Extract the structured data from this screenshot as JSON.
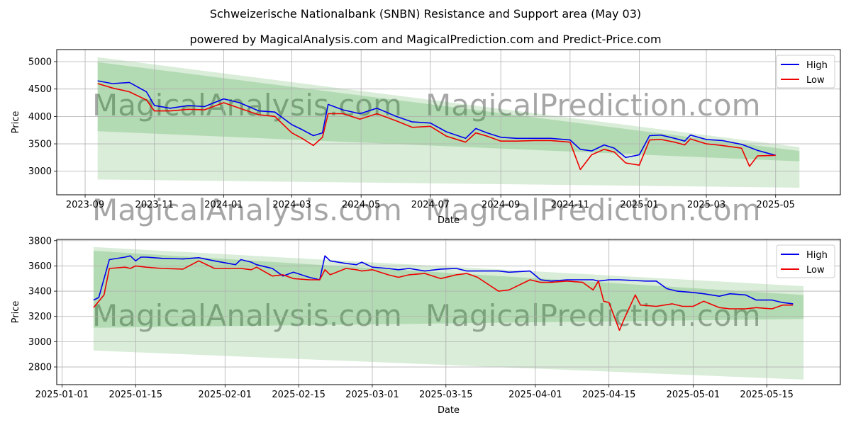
{
  "header": {
    "title": "Schweizerische Nationalbank (SNBN) Resistance and Support area (May 03)",
    "subtitle": "powered by MagicalAnalysis.com and MagicalPrediction.com and Predict-Price.com"
  },
  "watermarks": [
    "MagicalAnalysis.com",
    "MagicalPrediction.com"
  ],
  "colors": {
    "high": "#0000ee",
    "low": "#ee0000",
    "band": "#2e9b2e",
    "grid": "#b0b0b0"
  },
  "chart_data": [
    {
      "type": "line",
      "xlabel": "Date",
      "ylabel": "Price",
      "grid": true,
      "legend_position": "top-right",
      "x_ticks": [
        "2023-09",
        "2023-11",
        "2024-01",
        "2024-03",
        "2024-05",
        "2024-07",
        "2024-09",
        "2024-11",
        "2025-01",
        "2025-03",
        "2025-05"
      ],
      "y_ticks": [
        3000,
        3500,
        4000,
        4500,
        5000
      ],
      "xlim": [
        "2023-08-07",
        "2025-06-27"
      ],
      "ylim": [
        2570,
        5220
      ],
      "bands": [
        {
          "x": [
            "2023-09-12",
            "2025-05-22"
          ],
          "upper": [
            5080,
            3440
          ],
          "lower": [
            2850,
            2700
          ],
          "opacity": 0.18
        },
        {
          "x": [
            "2023-09-12",
            "2025-05-22"
          ],
          "upper": [
            4990,
            3370
          ],
          "lower": [
            3730,
            3180
          ],
          "opacity": 0.22
        }
      ],
      "series": [
        {
          "name": "High",
          "points": [
            [
              "2023-09-12",
              4650
            ],
            [
              "2023-09-25",
              4600
            ],
            [
              "2023-10-10",
              4620
            ],
            [
              "2023-10-25",
              4450
            ],
            [
              "2023-11-01",
              4200
            ],
            [
              "2023-11-15",
              4150
            ],
            [
              "2023-12-01",
              4200
            ],
            [
              "2023-12-15",
              4180
            ],
            [
              "2024-01-01",
              4320
            ],
            [
              "2024-01-15",
              4250
            ],
            [
              "2024-02-01",
              4100
            ],
            [
              "2024-02-15",
              4080
            ],
            [
              "2024-03-01",
              3850
            ],
            [
              "2024-03-10",
              3760
            ],
            [
              "2024-03-20",
              3650
            ],
            [
              "2024-03-28",
              3700
            ],
            [
              "2024-04-02",
              4220
            ],
            [
              "2024-04-15",
              4120
            ],
            [
              "2024-04-30",
              4050
            ],
            [
              "2024-05-15",
              4150
            ],
            [
              "2024-06-01",
              4000
            ],
            [
              "2024-06-15",
              3900
            ],
            [
              "2024-07-01",
              3880
            ],
            [
              "2024-07-15",
              3720
            ],
            [
              "2024-08-01",
              3600
            ],
            [
              "2024-08-10",
              3780
            ],
            [
              "2024-08-20",
              3700
            ],
            [
              "2024-09-01",
              3620
            ],
            [
              "2024-09-15",
              3600
            ],
            [
              "2024-10-01",
              3600
            ],
            [
              "2024-10-15",
              3600
            ],
            [
              "2024-11-01",
              3570
            ],
            [
              "2024-11-10",
              3400
            ],
            [
              "2024-11-20",
              3370
            ],
            [
              "2024-12-01",
              3480
            ],
            [
              "2024-12-10",
              3420
            ],
            [
              "2024-12-20",
              3250
            ],
            [
              "2025-01-01",
              3300
            ],
            [
              "2025-01-10",
              3650
            ],
            [
              "2025-01-20",
              3660
            ],
            [
              "2025-02-01",
              3600
            ],
            [
              "2025-02-10",
              3550
            ],
            [
              "2025-02-15",
              3660
            ],
            [
              "2025-03-01",
              3580
            ],
            [
              "2025-03-15",
              3560
            ],
            [
              "2025-04-01",
              3490
            ],
            [
              "2025-04-15",
              3380
            ],
            [
              "2025-05-01",
              3290
            ]
          ]
        },
        {
          "name": "Low",
          "points": [
            [
              "2023-09-12",
              4600
            ],
            [
              "2023-09-25",
              4520
            ],
            [
              "2023-10-10",
              4450
            ],
            [
              "2023-10-25",
              4300
            ],
            [
              "2023-11-01",
              4100
            ],
            [
              "2023-11-15",
              4100
            ],
            [
              "2023-12-01",
              4130
            ],
            [
              "2023-12-15",
              4120
            ],
            [
              "2024-01-01",
              4250
            ],
            [
              "2024-01-15",
              4150
            ],
            [
              "2024-02-01",
              4030
            ],
            [
              "2024-02-15",
              4000
            ],
            [
              "2024-03-01",
              3700
            ],
            [
              "2024-03-10",
              3600
            ],
            [
              "2024-03-20",
              3470
            ],
            [
              "2024-03-28",
              3620
            ],
            [
              "2024-04-02",
              4050
            ],
            [
              "2024-04-15",
              4050
            ],
            [
              "2024-04-30",
              3950
            ],
            [
              "2024-05-15",
              4050
            ],
            [
              "2024-06-01",
              3920
            ],
            [
              "2024-06-15",
              3800
            ],
            [
              "2024-07-01",
              3820
            ],
            [
              "2024-07-15",
              3640
            ],
            [
              "2024-08-01",
              3530
            ],
            [
              "2024-08-10",
              3700
            ],
            [
              "2024-08-20",
              3640
            ],
            [
              "2024-09-01",
              3550
            ],
            [
              "2024-09-15",
              3550
            ],
            [
              "2024-10-01",
              3560
            ],
            [
              "2024-10-15",
              3560
            ],
            [
              "2024-11-01",
              3530
            ],
            [
              "2024-11-10",
              3030
            ],
            [
              "2024-11-20",
              3300
            ],
            [
              "2024-12-01",
              3400
            ],
            [
              "2024-12-10",
              3350
            ],
            [
              "2024-12-20",
              3150
            ],
            [
              "2025-01-01",
              3110
            ],
            [
              "2025-01-10",
              3570
            ],
            [
              "2025-01-20",
              3580
            ],
            [
              "2025-02-01",
              3530
            ],
            [
              "2025-02-10",
              3480
            ],
            [
              "2025-02-15",
              3590
            ],
            [
              "2025-03-01",
              3500
            ],
            [
              "2025-03-15",
              3470
            ],
            [
              "2025-04-01",
              3420
            ],
            [
              "2025-04-08",
              3090
            ],
            [
              "2025-04-15",
              3280
            ],
            [
              "2025-05-01",
              3290
            ]
          ]
        }
      ]
    },
    {
      "type": "line",
      "xlabel": "Date",
      "ylabel": "Price",
      "grid": true,
      "legend_position": "top-right",
      "x_ticks": [
        "2025-01-01",
        "2025-01-15",
        "2025-02-01",
        "2025-02-15",
        "2025-03-01",
        "2025-03-15",
        "2025-04-01",
        "2025-04-15",
        "2025-05-01",
        "2025-05-15"
      ],
      "y_ticks": [
        2800,
        3000,
        3200,
        3400,
        3600,
        3800
      ],
      "xlim": [
        "2024-12-31",
        "2025-05-29"
      ],
      "ylim": [
        2660,
        3810
      ],
      "bands": [
        {
          "x": [
            "2025-01-07",
            "2025-05-22"
          ],
          "upper": [
            3750,
            3440
          ],
          "lower": [
            2930,
            2700
          ],
          "opacity": 0.18
        },
        {
          "x": [
            "2025-01-07",
            "2025-05-22"
          ],
          "upper": [
            3720,
            3370
          ],
          "lower": [
            3110,
            3180
          ],
          "opacity": 0.22
        }
      ],
      "series": [
        {
          "name": "High",
          "points": [
            [
              "2025-01-07",
              3330
            ],
            [
              "2025-01-08",
              3350
            ],
            [
              "2025-01-10",
              3650
            ],
            [
              "2025-01-13",
              3670
            ],
            [
              "2025-01-14",
              3680
            ],
            [
              "2025-01-15",
              3640
            ],
            [
              "2025-01-16",
              3670
            ],
            [
              "2025-01-17",
              3670
            ],
            [
              "2025-01-20",
              3660
            ],
            [
              "2025-01-24",
              3655
            ],
            [
              "2025-01-27",
              3665
            ],
            [
              "2025-01-30",
              3640
            ],
            [
              "2025-02-03",
              3610
            ],
            [
              "2025-02-04",
              3650
            ],
            [
              "2025-02-06",
              3630
            ],
            [
              "2025-02-07",
              3610
            ],
            [
              "2025-02-10",
              3580
            ],
            [
              "2025-02-12",
              3520
            ],
            [
              "2025-02-14",
              3550
            ],
            [
              "2025-02-17",
              3510
            ],
            [
              "2025-02-19",
              3490
            ],
            [
              "2025-02-20",
              3680
            ],
            [
              "2025-02-21",
              3640
            ],
            [
              "2025-02-24",
              3620
            ],
            [
              "2025-02-26",
              3610
            ],
            [
              "2025-02-27",
              3630
            ],
            [
              "2025-03-01",
              3590
            ],
            [
              "2025-03-04",
              3580
            ],
            [
              "2025-03-06",
              3570
            ],
            [
              "2025-03-08",
              3580
            ],
            [
              "2025-03-11",
              3560
            ],
            [
              "2025-03-14",
              3575
            ],
            [
              "2025-03-17",
              3580
            ],
            [
              "2025-03-19",
              3560
            ],
            [
              "2025-03-21",
              3560
            ],
            [
              "2025-03-25",
              3560
            ],
            [
              "2025-03-27",
              3550
            ],
            [
              "2025-03-31",
              3560
            ],
            [
              "2025-04-02",
              3490
            ],
            [
              "2025-04-04",
              3480
            ],
            [
              "2025-04-07",
              3490
            ],
            [
              "2025-04-10",
              3490
            ],
            [
              "2025-04-12",
              3490
            ],
            [
              "2025-04-13",
              3480
            ],
            [
              "2025-04-15",
              3490
            ],
            [
              "2025-04-17",
              3490
            ],
            [
              "2025-04-22",
              3480
            ],
            [
              "2025-04-24",
              3480
            ],
            [
              "2025-04-26",
              3420
            ],
            [
              "2025-04-28",
              3400
            ],
            [
              "2025-05-01",
              3390
            ],
            [
              "2025-05-03",
              3380
            ],
            [
              "2025-05-06",
              3360
            ],
            [
              "2025-05-08",
              3380
            ],
            [
              "2025-05-11",
              3370
            ],
            [
              "2025-05-13",
              3330
            ],
            [
              "2025-05-16",
              3330
            ],
            [
              "2025-05-18",
              3310
            ],
            [
              "2025-05-20",
              3300
            ]
          ]
        },
        {
          "name": "Low",
          "points": [
            [
              "2025-01-07",
              3270
            ],
            [
              "2025-01-09",
              3370
            ],
            [
              "2025-01-10",
              3580
            ],
            [
              "2025-01-13",
              3590
            ],
            [
              "2025-01-14",
              3580
            ],
            [
              "2025-01-15",
              3600
            ],
            [
              "2025-01-17",
              3590
            ],
            [
              "2025-01-20",
              3580
            ],
            [
              "2025-01-24",
              3575
            ],
            [
              "2025-01-27",
              3640
            ],
            [
              "2025-01-28",
              3620
            ],
            [
              "2025-01-30",
              3580
            ],
            [
              "2025-02-03",
              3580
            ],
            [
              "2025-02-04",
              3580
            ],
            [
              "2025-02-06",
              3570
            ],
            [
              "2025-02-07",
              3590
            ],
            [
              "2025-02-10",
              3520
            ],
            [
              "2025-02-12",
              3530
            ],
            [
              "2025-02-14",
              3500
            ],
            [
              "2025-02-17",
              3490
            ],
            [
              "2025-02-19",
              3490
            ],
            [
              "2025-02-20",
              3570
            ],
            [
              "2025-02-21",
              3530
            ],
            [
              "2025-02-24",
              3580
            ],
            [
              "2025-02-26",
              3570
            ],
            [
              "2025-02-27",
              3560
            ],
            [
              "2025-03-01",
              3570
            ],
            [
              "2025-03-04",
              3530
            ],
            [
              "2025-03-06",
              3510
            ],
            [
              "2025-03-08",
              3530
            ],
            [
              "2025-03-11",
              3540
            ],
            [
              "2025-03-14",
              3500
            ],
            [
              "2025-03-17",
              3530
            ],
            [
              "2025-03-19",
              3540
            ],
            [
              "2025-03-21",
              3510
            ],
            [
              "2025-03-25",
              3400
            ],
            [
              "2025-03-27",
              3410
            ],
            [
              "2025-03-31",
              3490
            ],
            [
              "2025-04-02",
              3470
            ],
            [
              "2025-04-04",
              3470
            ],
            [
              "2025-04-07",
              3480
            ],
            [
              "2025-04-10",
              3470
            ],
            [
              "2025-04-12",
              3410
            ],
            [
              "2025-04-13",
              3480
            ],
            [
              "2025-04-14",
              3320
            ],
            [
              "2025-04-15",
              3310
            ],
            [
              "2025-04-17",
              3090
            ],
            [
              "2025-04-18",
              3190
            ],
            [
              "2025-04-20",
              3370
            ],
            [
              "2025-04-21",
              3290
            ],
            [
              "2025-04-24",
              3280
            ],
            [
              "2025-04-27",
              3300
            ],
            [
              "2025-04-29",
              3280
            ],
            [
              "2025-05-01",
              3280
            ],
            [
              "2025-05-03",
              3320
            ],
            [
              "2025-05-06",
              3270
            ],
            [
              "2025-05-08",
              3260
            ],
            [
              "2025-05-11",
              3260
            ],
            [
              "2025-05-13",
              3270
            ],
            [
              "2025-05-16",
              3260
            ],
            [
              "2025-05-18",
              3290
            ],
            [
              "2025-05-20",
              3290
            ]
          ]
        }
      ]
    }
  ]
}
